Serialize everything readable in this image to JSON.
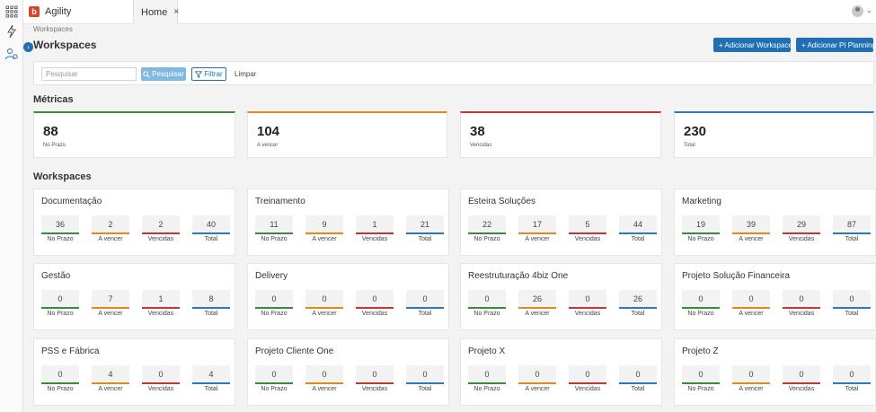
{
  "app": {
    "name": "Agility",
    "logo_letter": "b"
  },
  "tabs": [
    {
      "label": "Home",
      "close": "×"
    }
  ],
  "user": {
    "chevron": "⌄"
  },
  "breadcrumb": "Workspaces",
  "page": {
    "title": "Workspaces",
    "add_workspace_label": "+ Adicionar Workspace",
    "add_pi_label": "+ Adicionar PI Planning"
  },
  "filter": {
    "search_placeholder": "Pesquisar",
    "search_button": "Pesquisar",
    "filter_button": "Filtrar",
    "clear_button": "Limpar"
  },
  "metrics": {
    "title": "Métricas",
    "cards": [
      {
        "value": "88",
        "label": "No Prazo",
        "color": "#3a8a3a"
      },
      {
        "value": "104",
        "label": "A vencer",
        "color": "#e08a1e"
      },
      {
        "value": "38",
        "label": "Vencidas",
        "color": "#c0392b"
      },
      {
        "value": "230",
        "label": "Total",
        "color": "#2e78b7"
      }
    ]
  },
  "workspaces": {
    "title": "Workspaces",
    "stat_labels": [
      "No Prazo",
      "A vencer",
      "Vencidas",
      "Total"
    ],
    "stat_colors": [
      "#3a8a3a",
      "#e08a1e",
      "#c0392b",
      "#2e78b7"
    ],
    "items": [
      {
        "name": "Documentação",
        "stats": [
          "36",
          "2",
          "2",
          "40"
        ]
      },
      {
        "name": "Treinamento",
        "stats": [
          "11",
          "9",
          "1",
          "21"
        ]
      },
      {
        "name": "Esteira Soluções",
        "stats": [
          "22",
          "17",
          "5",
          "44"
        ]
      },
      {
        "name": "Marketing",
        "stats": [
          "19",
          "39",
          "29",
          "87"
        ]
      },
      {
        "name": "Gestão",
        "stats": [
          "0",
          "7",
          "1",
          "8"
        ]
      },
      {
        "name": "Delivery",
        "stats": [
          "0",
          "0",
          "0",
          "0"
        ]
      },
      {
        "name": "Reestruturação 4biz One",
        "stats": [
          "0",
          "26",
          "0",
          "26"
        ]
      },
      {
        "name": "Projeto Solução Financeira",
        "stats": [
          "0",
          "0",
          "0",
          "0"
        ]
      },
      {
        "name": "PSS e Fábrica",
        "stats": [
          "0",
          "4",
          "0",
          "4"
        ]
      },
      {
        "name": "Projeto Cliente One",
        "stats": [
          "0",
          "0",
          "0",
          "0"
        ]
      },
      {
        "name": "Projeto X",
        "stats": [
          "0",
          "0",
          "0",
          "0"
        ]
      },
      {
        "name": "Projeto Z",
        "stats": [
          "0",
          "0",
          "0",
          "0"
        ]
      }
    ]
  }
}
